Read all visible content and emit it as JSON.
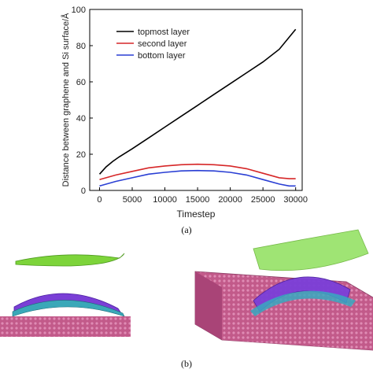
{
  "chart_data": {
    "type": "line",
    "xlabel": "Timestep",
    "ylabel": "Distance between graphene and Si surface/Å",
    "xlim": [
      -1500,
      31000
    ],
    "ylim": [
      0,
      100
    ],
    "xticks": [
      0,
      5000,
      10000,
      15000,
      20000,
      25000,
      30000
    ],
    "yticks": [
      0,
      20,
      40,
      60,
      80,
      100
    ],
    "grid": false,
    "legend_position": "top-left",
    "series": [
      {
        "name": "topmost layer",
        "color": "#000000",
        "x": [
          0,
          1000,
          2000,
          3000,
          5000,
          7500,
          10000,
          12500,
          15000,
          17500,
          20000,
          22500,
          25000,
          27500,
          30000
        ],
        "y": [
          9,
          13,
          16,
          18.5,
          23,
          29,
          35,
          41,
          47,
          53,
          59,
          65,
          71,
          78,
          89
        ]
      },
      {
        "name": "second layer",
        "color": "#d62728",
        "x": [
          0,
          2500,
          5000,
          7500,
          10000,
          12500,
          15000,
          17500,
          20000,
          22500,
          25000,
          27500,
          29000,
          30000
        ],
        "y": [
          6,
          8.5,
          10.5,
          12.5,
          13.5,
          14.2,
          14.5,
          14.2,
          13.5,
          12,
          9.5,
          7,
          6.5,
          6.5
        ]
      },
      {
        "name": "bottom layer",
        "color": "#2a3fd4",
        "x": [
          0,
          2500,
          5000,
          7500,
          10000,
          12500,
          15000,
          17500,
          20000,
          22500,
          25000,
          27500,
          29000,
          30000
        ],
        "y": [
          2.5,
          5,
          7,
          9,
          10,
          10.8,
          11,
          10.8,
          10,
          8.5,
          6,
          3.5,
          2.5,
          2.5
        ]
      }
    ]
  },
  "captions": {
    "a": "(a)",
    "b": "(b)"
  }
}
